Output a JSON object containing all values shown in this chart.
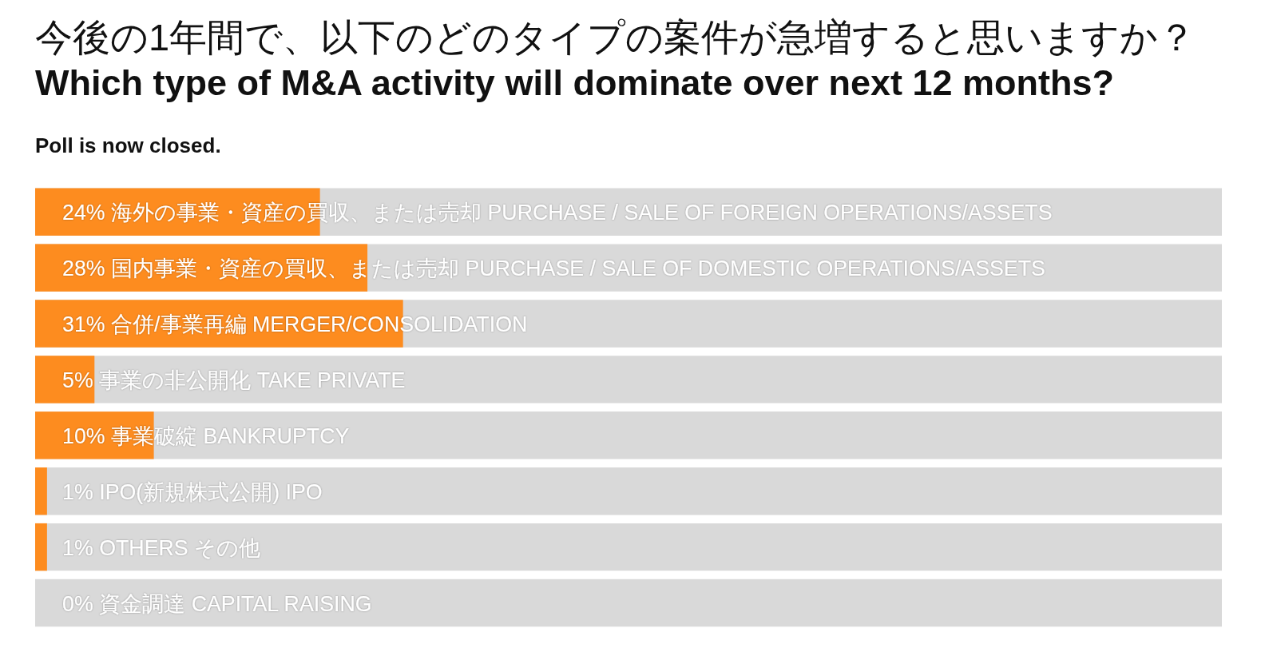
{
  "chart_data": {
    "type": "bar",
    "orientation": "horizontal",
    "title": "今後の1年間で、以下のどのタイプの案件が急増すると思いますか？",
    "subtitle": "Which type of M&A activity will dominate over next 12 months?",
    "annotations": [
      "Poll is now closed."
    ],
    "categories": [
      "海外の事業・資産の買収、または売却 PURCHASE / SALE OF FOREIGN OPERATIONS/ASSETS",
      "国内事業・資産の買収、または売却 PURCHASE / SALE OF DOMESTIC OPERATIONS/ASSETS",
      "合併/事業再編 MERGER/CONSOLIDATION",
      "事業の非公開化 TAKE PRIVATE",
      "事業破綻 BANKRUPTCY",
      "IPO(新規株式公開) IPO",
      "OTHERS その他",
      "資金調達 CAPITAL RAISING"
    ],
    "values": [
      24,
      28,
      31,
      5,
      10,
      1,
      1,
      0
    ],
    "value_labels": [
      "24%",
      "28%",
      "31%",
      "5%",
      "10%",
      "1%",
      "1%",
      "0%"
    ],
    "color": "#fd8c1f",
    "xlim": [
      0,
      100
    ],
    "bands": [
      {
        "axis": "x",
        "from": 0,
        "to": 100,
        "color": "#d9d9d9"
      }
    ]
  }
}
